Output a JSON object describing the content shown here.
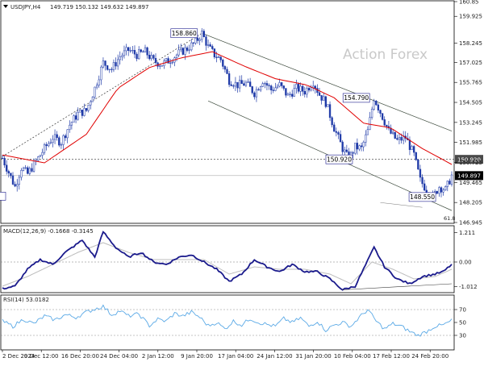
{
  "header": {
    "symbol": "USDJPY,H4",
    "ohlc": "149.719 150.132 149.632 149.897"
  },
  "watermark": "Action Forex",
  "fib_label": "61.8",
  "colors": {
    "candle": "#1f3aa8",
    "ma": "#e00000",
    "channel": "#3c4a3c",
    "macd": "#1a1a8c",
    "signal": "#bdbdbd",
    "rsi": "#5aa9e6",
    "price_tag": "#4a4a4a"
  },
  "chart_data": [
    {
      "type": "candlestick",
      "title": "USDJPY,H4",
      "x_labels": [
        "2 Dec 2024",
        "9 Dec 12:00",
        "16 Dec 20:00",
        "24 Dec 04:00",
        "2 Jan 12:00",
        "9 Jan 20:00",
        "17 Jan 04:00",
        "24 Jan 12:00",
        "31 Jan 20:00",
        "10 Feb 04:00",
        "17 Feb 12:00",
        "24 Feb 20:00"
      ],
      "y_ticks": [
        "160.85",
        "159.925",
        "158.245",
        "157.025",
        "155.765",
        "154.505",
        "153.245",
        "151.985",
        "150.725",
        "149.465",
        "148.205",
        "146.945"
      ],
      "ylim": [
        146.945,
        160.85
      ],
      "key_levels": [
        {
          "label": "158.860",
          "value": 158.86
        },
        {
          "label": "154.790",
          "value": 154.79
        },
        {
          "label": "150.920",
          "value": 150.92
        },
        {
          "label": "148.550",
          "value": 148.55
        }
      ],
      "current_price": {
        "label": "149.897",
        "value": 149.897
      },
      "hline_price": {
        "label": "150.920",
        "value": 150.92
      },
      "close_points": [
        [
          0,
          151.0
        ],
        [
          3,
          150.1
        ],
        [
          6,
          149.2
        ],
        [
          9,
          150.4
        ],
        [
          12,
          150.0
        ],
        [
          16,
          150.8
        ],
        [
          20,
          151.6
        ],
        [
          24,
          152.3
        ],
        [
          28,
          152.0
        ],
        [
          32,
          153.1
        ],
        [
          36,
          153.8
        ],
        [
          40,
          154.0
        ],
        [
          44,
          155.4
        ],
        [
          48,
          157.0
        ],
        [
          52,
          156.6
        ],
        [
          56,
          157.4
        ],
        [
          60,
          157.8
        ],
        [
          64,
          157.5
        ],
        [
          68,
          157.7
        ],
        [
          72,
          157.1
        ],
        [
          76,
          156.9
        ],
        [
          80,
          157.2
        ],
        [
          84,
          157.6
        ],
        [
          88,
          157.9
        ],
        [
          92,
          158.3
        ],
        [
          95,
          158.86
        ],
        [
          98,
          158.0
        ],
        [
          101,
          157.5
        ],
        [
          104,
          157.2
        ],
        [
          108,
          155.9
        ],
        [
          112,
          155.6
        ],
        [
          116,
          155.7
        ],
        [
          120,
          155.1
        ],
        [
          124,
          155.9
        ],
        [
          128,
          155.3
        ],
        [
          132,
          155.6
        ],
        [
          136,
          154.9
        ],
        [
          140,
          155.4
        ],
        [
          144,
          155.2
        ],
        [
          148,
          155.8
        ],
        [
          151,
          155.0
        ],
        [
          154,
          154.5
        ],
        [
          158,
          152.9
        ],
        [
          162,
          151.6
        ],
        [
          165,
          150.92
        ],
        [
          168,
          151.7
        ],
        [
          171,
          151.6
        ],
        [
          174,
          152.7
        ],
        [
          177,
          154.79
        ],
        [
          180,
          153.9
        ],
        [
          184,
          152.7
        ],
        [
          188,
          152.1
        ],
        [
          192,
          152.3
        ],
        [
          196,
          151.2
        ],
        [
          199,
          149.6
        ],
        [
          202,
          149.0
        ],
        [
          205,
          148.55
        ],
        [
          208,
          149.2
        ],
        [
          211,
          149.0
        ],
        [
          214,
          149.897
        ]
      ],
      "moving_average": [
        [
          0,
          151.2
        ],
        [
          20,
          150.7
        ],
        [
          40,
          152.5
        ],
        [
          55,
          155.4
        ],
        [
          70,
          156.7
        ],
        [
          85,
          157.3
        ],
        [
          100,
          157.7
        ],
        [
          115,
          156.8
        ],
        [
          130,
          156.0
        ],
        [
          145,
          155.6
        ],
        [
          158,
          154.8
        ],
        [
          172,
          153.2
        ],
        [
          185,
          152.9
        ],
        [
          200,
          151.6
        ],
        [
          214,
          150.6
        ]
      ]
    },
    {
      "type": "line",
      "title": "MACD(12,26,9) -0.1668 -0.3145",
      "y_ticks": [
        "1.211",
        "0.00",
        "-1.012"
      ],
      "ylim": [
        -1.2,
        1.4
      ],
      "series": [
        {
          "name": "MACD",
          "values": [
            [
              0,
              -1.1
            ],
            [
              6,
              -1.0
            ],
            [
              12,
              -0.3
            ],
            [
              18,
              0.1
            ],
            [
              24,
              -0.1
            ],
            [
              30,
              0.4
            ],
            [
              38,
              0.9
            ],
            [
              44,
              0.2
            ],
            [
              48,
              1.25
            ],
            [
              54,
              0.6
            ],
            [
              60,
              0.2
            ],
            [
              66,
              0.4
            ],
            [
              72,
              0.0
            ],
            [
              78,
              -0.1
            ],
            [
              84,
              0.2
            ],
            [
              90,
              0.3
            ],
            [
              96,
              0.0
            ],
            [
              102,
              -0.3
            ],
            [
              108,
              -0.8
            ],
            [
              114,
              -0.5
            ],
            [
              120,
              0.1
            ],
            [
              126,
              -0.2
            ],
            [
              132,
              -0.4
            ],
            [
              138,
              -0.1
            ],
            [
              144,
              -0.4
            ],
            [
              150,
              -0.4
            ],
            [
              156,
              -0.7
            ],
            [
              162,
              -1.15
            ],
            [
              168,
              -1.0
            ],
            [
              172,
              -0.3
            ],
            [
              177,
              0.6
            ],
            [
              182,
              -0.2
            ],
            [
              188,
              -0.7
            ],
            [
              194,
              -0.9
            ],
            [
              200,
              -0.6
            ],
            [
              206,
              -0.5
            ],
            [
              210,
              -0.4
            ],
            [
              214,
              -0.1
            ]
          ]
        },
        {
          "name": "Signal",
          "values": [
            [
              0,
              -1.0
            ],
            [
              12,
              -0.6
            ],
            [
              24,
              -0.1
            ],
            [
              36,
              0.4
            ],
            [
              48,
              0.8
            ],
            [
              60,
              0.4
            ],
            [
              72,
              0.1
            ],
            [
              84,
              0.1
            ],
            [
              96,
              0.1
            ],
            [
              108,
              -0.5
            ],
            [
              120,
              -0.2
            ],
            [
              132,
              -0.3
            ],
            [
              144,
              -0.3
            ],
            [
              156,
              -0.5
            ],
            [
              166,
              -0.9
            ],
            [
              176,
              0.0
            ],
            [
              186,
              -0.3
            ],
            [
              196,
              -0.7
            ],
            [
              206,
              -0.6
            ],
            [
              214,
              -0.3
            ]
          ]
        }
      ]
    },
    {
      "type": "line",
      "title": "RSI(14) 53.0182",
      "y_ticks": [
        "70",
        "50",
        "30"
      ],
      "ylim": [
        10,
        90
      ],
      "series": [
        {
          "name": "RSI",
          "values": [
            [
              0,
              52
            ],
            [
              5,
              44
            ],
            [
              10,
              55
            ],
            [
              15,
              48
            ],
            [
              20,
              60
            ],
            [
              25,
              54
            ],
            [
              30,
              62
            ],
            [
              35,
              58
            ],
            [
              40,
              66
            ],
            [
              45,
              72
            ],
            [
              48,
              75
            ],
            [
              52,
              62
            ],
            [
              56,
              68
            ],
            [
              60,
              60
            ],
            [
              65,
              63
            ],
            [
              70,
              45
            ],
            [
              74,
              55
            ],
            [
              78,
              52
            ],
            [
              82,
              64
            ],
            [
              86,
              60
            ],
            [
              90,
              66
            ],
            [
              94,
              58
            ],
            [
              98,
              45
            ],
            [
              102,
              50
            ],
            [
              106,
              40
            ],
            [
              110,
              52
            ],
            [
              114,
              46
            ],
            [
              118,
              56
            ],
            [
              122,
              50
            ],
            [
              126,
              47
            ],
            [
              130,
              44
            ],
            [
              134,
              56
            ],
            [
              138,
              50
            ],
            [
              142,
              57
            ],
            [
              146,
              44
            ],
            [
              150,
              52
            ],
            [
              154,
              38
            ],
            [
              158,
              46
            ],
            [
              162,
              50
            ],
            [
              166,
              44
            ],
            [
              170,
              58
            ],
            [
              174,
              70
            ],
            [
              178,
              52
            ],
            [
              182,
              40
            ],
            [
              186,
              48
            ],
            [
              190,
              44
            ],
            [
              194,
              36
            ],
            [
              198,
              30
            ],
            [
              202,
              36
            ],
            [
              206,
              44
            ],
            [
              210,
              46
            ],
            [
              214,
              53
            ]
          ]
        }
      ]
    }
  ]
}
